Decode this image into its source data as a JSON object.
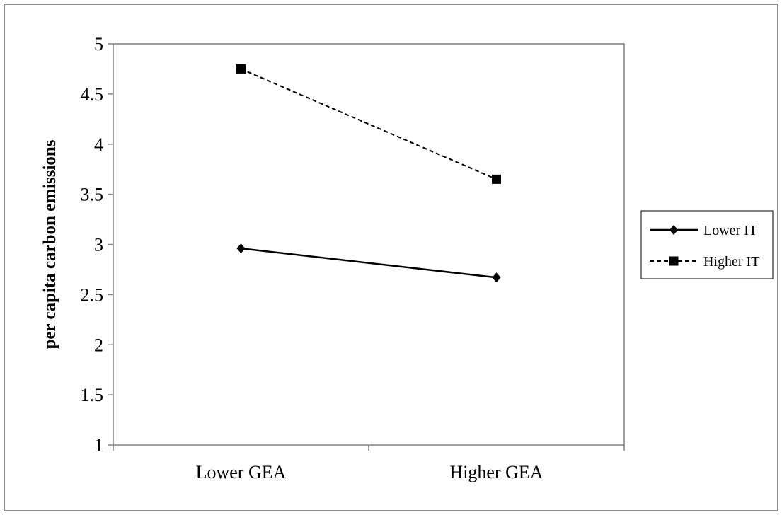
{
  "chart_data": {
    "type": "line",
    "title": "",
    "xlabel": "",
    "ylabel": "per capita carbon emissions",
    "categories": [
      "Lower GEA",
      "Higher GEA"
    ],
    "ylim": [
      1,
      5
    ],
    "yticks": [
      "1",
      "1.5",
      "2",
      "2.5",
      "3",
      "3.5",
      "4",
      "4.5",
      "5"
    ],
    "grid": false,
    "legend_position": "right",
    "series": [
      {
        "name": "Lower IT",
        "values": [
          2.96,
          2.67
        ],
        "marker": "diamond",
        "line_style": "solid",
        "color": "#000000"
      },
      {
        "name": "Higher IT",
        "values": [
          4.75,
          3.65
        ],
        "marker": "square",
        "line_style": "dashed",
        "color": "#000000"
      }
    ]
  }
}
